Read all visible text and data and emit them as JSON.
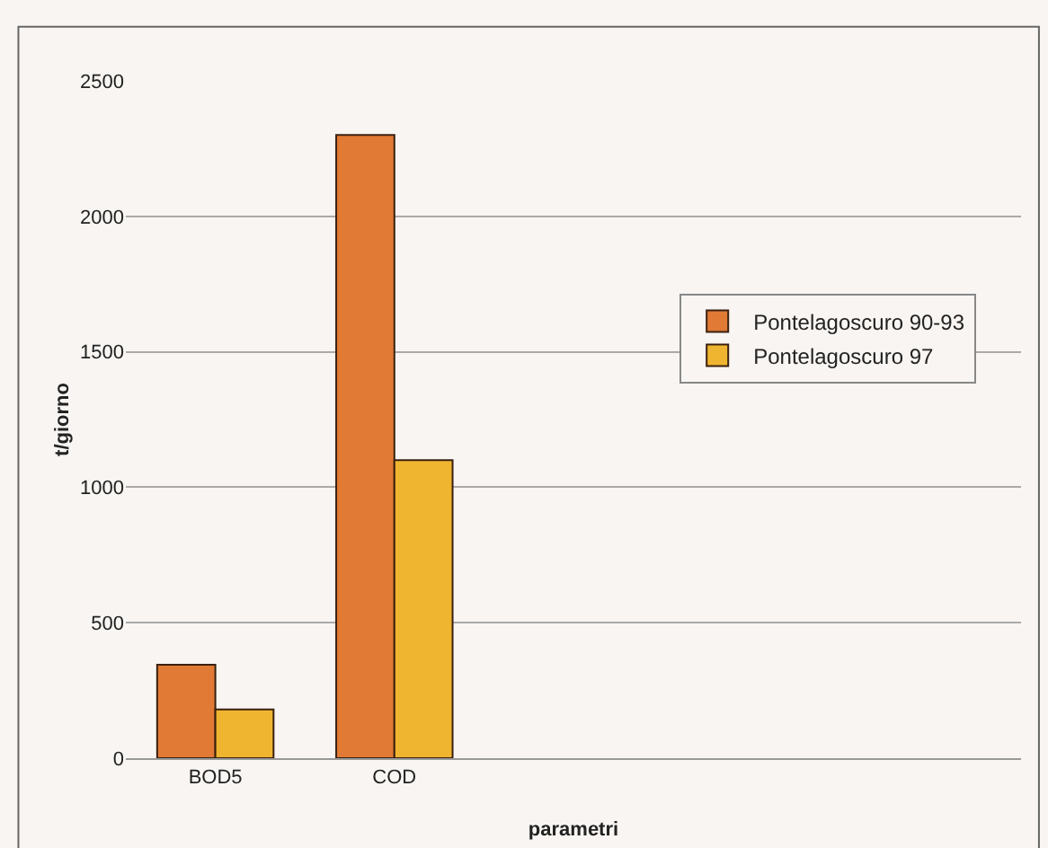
{
  "chart_data": {
    "type": "bar",
    "xlabel": "parametri",
    "ylabel": "t/giorno",
    "categories": [
      "BOD5",
      "COD",
      null,
      null,
      null
    ],
    "series": [
      {
        "name": "Pontelagoscuro 90-93",
        "color": "#e07a35",
        "values": [
          345,
          2300,
          null,
          null,
          null
        ]
      },
      {
        "name": "Pontelagoscuro 97",
        "color": "#f0b530",
        "values": [
          180,
          1100,
          null,
          null,
          null
        ]
      }
    ],
    "ylim": [
      0,
      2500
    ],
    "yticks": [
      0,
      500,
      1000,
      1500,
      2000,
      2500
    ],
    "grid": "y",
    "legend": "right"
  }
}
